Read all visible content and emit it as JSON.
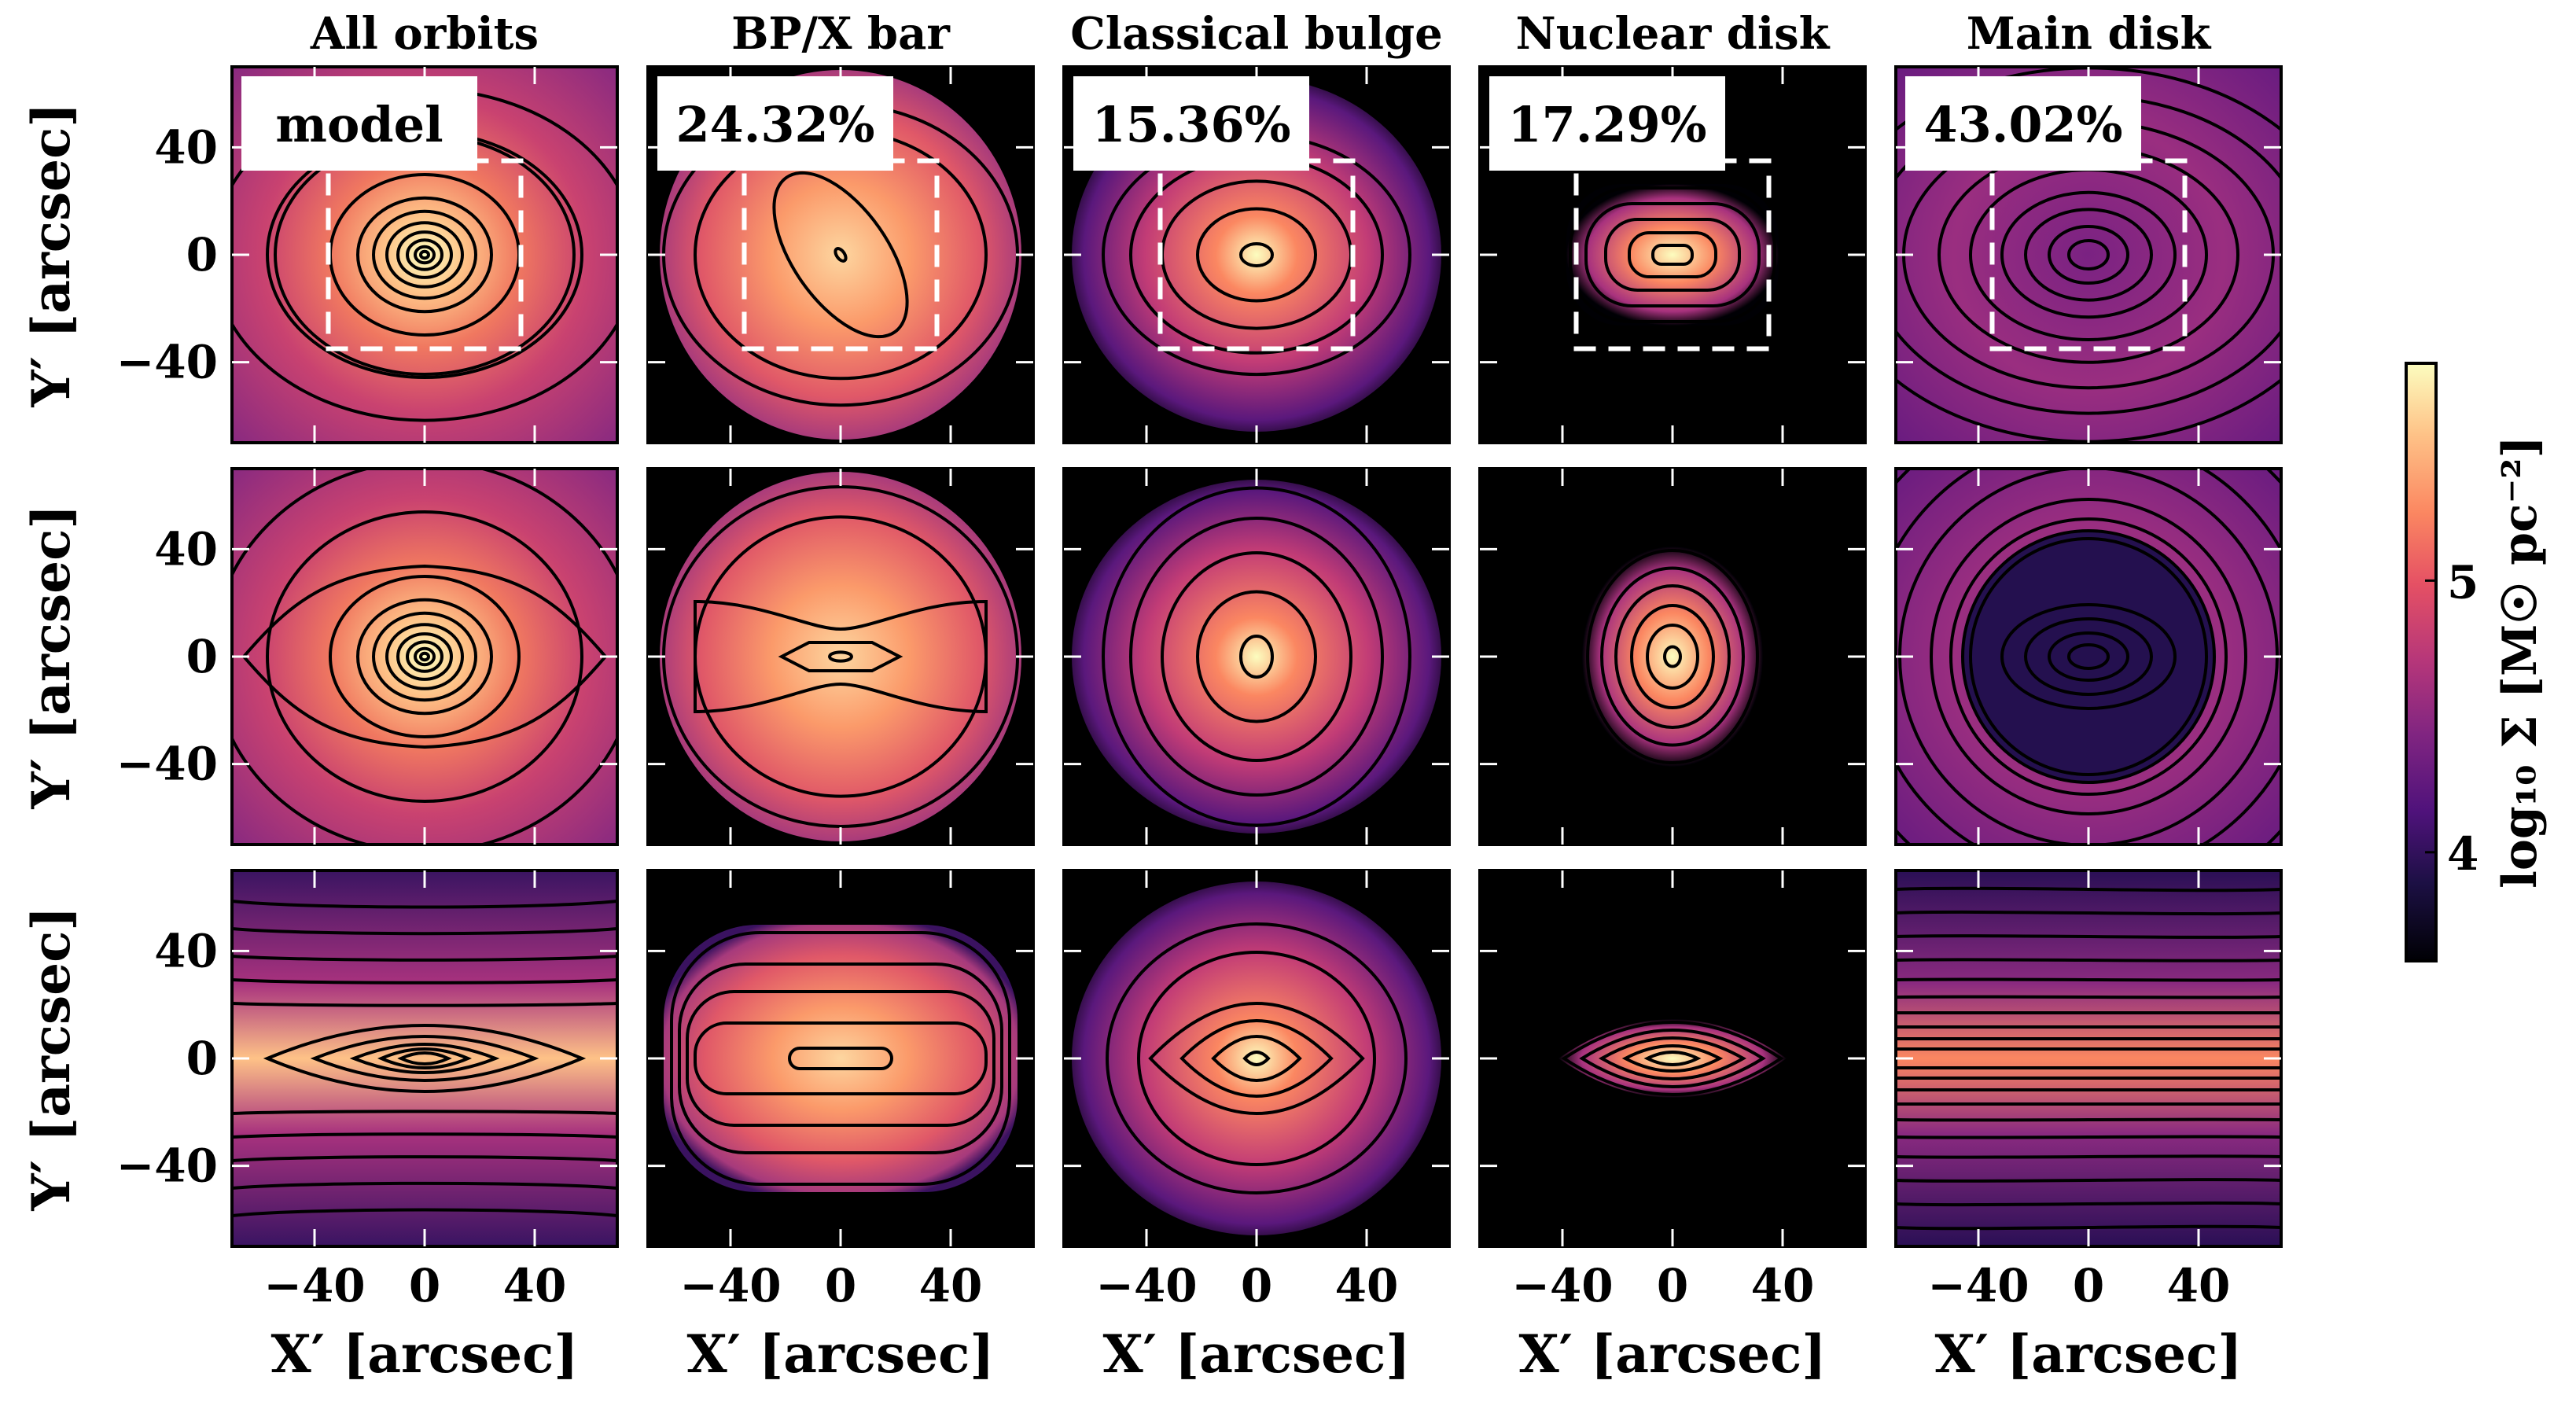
{
  "chart_data": {
    "type": "heatmap",
    "columns": [
      "All orbits",
      "BP/X bar",
      "Classical bulge",
      "Nuclear disk",
      "Main disk"
    ],
    "fractions": [
      "model",
      "24.32%",
      "15.36%",
      "17.29%",
      "43.02%"
    ],
    "rows": 3,
    "xlabel": "X′ [arcsec]",
    "ylabel": "Y′ [arcsec]",
    "xticks": [
      -40,
      0,
      40
    ],
    "yticks": [
      40,
      0,
      -40
    ],
    "xlim": [
      -70,
      70
    ],
    "ylim": [
      -70,
      70
    ],
    "colormap": "magma",
    "colorbar": {
      "label": "log₁₀ Σ [M☉ pc⁻²]",
      "ticks": [
        4,
        5
      ],
      "range": [
        3.6,
        5.8
      ]
    },
    "dashed_box": {
      "x": [
        -35,
        35
      ],
      "y": [
        -35,
        35
      ]
    },
    "colors": {
      "box": "#ffffff",
      "contour": "#000000",
      "background": "#000000"
    }
  },
  "labels": {
    "x_ticks_text": [
      "−40",
      "0",
      "40"
    ],
    "y_ticks_text": [
      "40",
      "0",
      "−40"
    ],
    "cbar_ticks_text": [
      "4",
      "5"
    ],
    "cbar_title_text": "log₁₀ Σ [M☉ pc⁻²]"
  }
}
